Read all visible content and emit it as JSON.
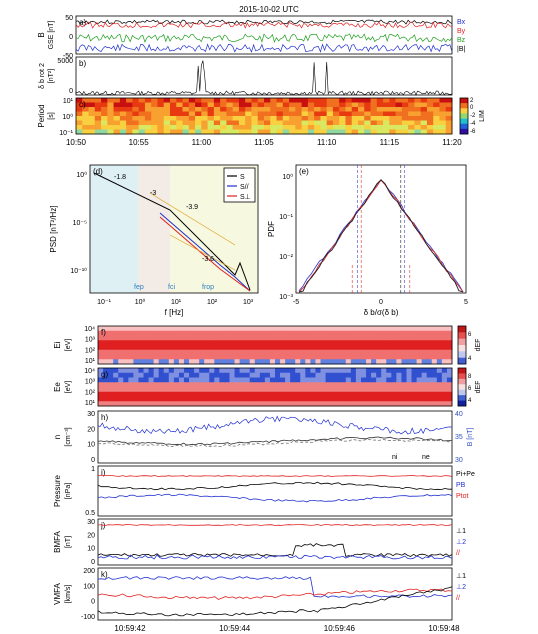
{
  "title": "2015-10-02 UTC",
  "colors": {
    "bx": "#2030d0",
    "by": "#e02020",
    "bz": "#20a020",
    "btot": "#000000",
    "pdf_blue": "#4040d0",
    "pdf_red": "#e03030",
    "pdf_dark": "#202020"
  },
  "top": {
    "a": {
      "letter": "a)",
      "ylabel": "B",
      "ysub": "GSE",
      "yunit": "[nT]",
      "yticks": [
        "50",
        "0",
        "-50"
      ],
      "legend": [
        {
          "label": "B",
          "sub": "x",
          "color": "#2030d0"
        },
        {
          "label": "B",
          "sub": "y",
          "color": "#e02020"
        },
        {
          "label": "B",
          "sub": "z",
          "color": "#20a020"
        },
        {
          "label": "|B|",
          "sub": "",
          "color": "#000000"
        }
      ]
    },
    "b": {
      "letter": "b)",
      "ylabel": "δ b",
      "ysub": "rot",
      "ysup": "2",
      "yunit": "[nT²]",
      "yticks": [
        "5000",
        "0"
      ]
    },
    "c": {
      "letter": "c)",
      "ylabel": "Period",
      "yunit": "[s]",
      "yticks": [
        "10¹",
        "10⁰",
        "10⁻¹"
      ],
      "colorbar": {
        "ticks": [
          "0",
          "-2",
          "-4",
          "-6"
        ],
        "label": "LIM",
        "top": "2"
      }
    },
    "xticks": [
      "10:50",
      "10:55",
      "11:00",
      "11:05",
      "11:10",
      "11:15",
      "11:20"
    ]
  },
  "d": {
    "letter": "(d)",
    "ylabel": "PSD [nT²/Hz]",
    "xlabel": "f [Hz]",
    "yticks": [
      "10⁰",
      "10⁻⁵",
      "10⁻¹⁰"
    ],
    "xticks": [
      "10⁻¹",
      "10⁰",
      "10¹",
      "10²",
      "10³"
    ],
    "slopes": [
      "-1.8",
      "-3",
      "-3.9",
      "-3.6"
    ],
    "freqs": [
      {
        "label": "f",
        "sub": "ep"
      },
      {
        "label": "f",
        "sub": "ci"
      },
      {
        "label": "f",
        "sub": "rop"
      }
    ],
    "legend": [
      {
        "label": "S",
        "sub": "",
        "color": "#000000"
      },
      {
        "label": "S",
        "sub": "//",
        "color": "#2030d0"
      },
      {
        "label": "S",
        "sub": "⊥",
        "color": "#e02020"
      }
    ]
  },
  "e": {
    "letter": "(e)",
    "ylabel": "PDF",
    "xlabel": "δ b/σ(δ b)",
    "yticks": [
      "10⁰",
      "10⁻¹",
      "10⁻²",
      "10⁻³"
    ],
    "xticks": [
      "-5",
      "0",
      "5"
    ]
  },
  "bottom": {
    "f": {
      "letter": "f)",
      "ylabel": "E",
      "ysub": "i",
      "yunit": "[eV]",
      "yticks": [
        "10⁴",
        "10³",
        "10²",
        "10¹"
      ],
      "cbticks": [
        "6",
        "4"
      ],
      "cblabel": "dEF"
    },
    "g": {
      "letter": "g)",
      "ylabel": "E",
      "ysub": "e",
      "yunit": "[eV]",
      "yticks": [
        "10⁴",
        "10³",
        "10²",
        "10¹"
      ],
      "cbticks": [
        "8",
        "6",
        "4"
      ],
      "cblabel": "dEF"
    },
    "h": {
      "letter": "h)",
      "ylabel": "n",
      "yunit": "[cm⁻³]",
      "yticks": [
        "30",
        "20",
        "10",
        "0"
      ],
      "y2ticks": [
        "40",
        "35",
        "30"
      ],
      "y2label": "B [nT]",
      "legend": [
        {
          "label": "n",
          "sub": "i"
        },
        {
          "label": "n",
          "sub": "e"
        }
      ]
    },
    "i": {
      "letter": "i)",
      "ylabel": "Pressure",
      "yunit": "[nPa]",
      "yticks": [
        "1",
        "0.5"
      ],
      "legend": [
        {
          "label": "P",
          "sub": "i",
          "tail": "+P",
          "tailsub": "e",
          "color": "#000000"
        },
        {
          "label": "P",
          "sub": "B",
          "color": "#2030d0"
        },
        {
          "label": "P",
          "sub": "tot",
          "color": "#e02020"
        }
      ]
    },
    "j": {
      "letter": "j)",
      "ylabel": "B",
      "ysub": "MFA",
      "yunit": "[nT]",
      "yticks": [
        "30",
        "20",
        "10",
        "0"
      ],
      "legend": [
        {
          "label": "⊥1",
          "color": "#000000"
        },
        {
          "label": "⊥2",
          "color": "#2030d0"
        },
        {
          "label": "//",
          "color": "#e02020"
        }
      ]
    },
    "k": {
      "letter": "k)",
      "ylabel": "V",
      "ysub": "MFA",
      "yunit": "[km/s]",
      "yticks": [
        "200",
        "100",
        "0",
        "-100"
      ],
      "legend": [
        {
          "label": "⊥1",
          "color": "#000000"
        },
        {
          "label": "⊥2",
          "color": "#2030d0"
        },
        {
          "label": "//",
          "color": "#e02020"
        }
      ]
    },
    "xticks": [
      "10:59:42",
      "10:59:44",
      "10:59:46",
      "10:59:48"
    ]
  },
  "chart_data": [
    {
      "type": "line",
      "ylabel": "B GSE [nT]",
      "ylim": [
        -50,
        50
      ],
      "x_range": [
        "10:50",
        "11:20"
      ],
      "series": [
        {
          "name": "Bx",
          "values": [
            -40,
            -35,
            -38,
            -30,
            -42,
            -36,
            -33
          ]
        },
        {
          "name": "By",
          "values": [
            15,
            20,
            12,
            25,
            18,
            22,
            20
          ]
        },
        {
          "name": "Bz",
          "values": [
            -5,
            0,
            -8,
            -3,
            2,
            -5,
            -2
          ]
        },
        {
          "name": "|B|",
          "values": [
            45,
            44,
            46,
            43,
            45,
            44,
            45
          ]
        }
      ]
    },
    {
      "type": "line",
      "ylabel": "δ b rot² [nT²]",
      "ylim": [
        0,
        5000
      ]
    },
    {
      "type": "heatmap",
      "ylabel": "Period [s]"
    },
    {
      "type": "line",
      "xlabel": "f [Hz]",
      "ylabel": "PSD [nT²/Hz]",
      "series": [
        {
          "name": "S"
        },
        {
          "name": "S//"
        },
        {
          "name": "S⊥"
        }
      ],
      "slopes": [
        -1.8,
        -3,
        -3.9,
        -3.6
      ]
    },
    {
      "type": "line",
      "xlabel": "δ b/σ(δ b)",
      "ylabel": "PDF",
      "xlim": [
        -5,
        5
      ],
      "ylim": [
        0.001,
        1
      ]
    },
    {
      "type": "heatmap",
      "ylabel": "Ei [eV]"
    },
    {
      "type": "heatmap",
      "ylabel": "Ee [eV]"
    },
    {
      "type": "line",
      "ylabel": "n [cm⁻³]",
      "ylim": [
        0,
        30
      ],
      "series": [
        {
          "name": "ni",
          "values": [
            14,
            15,
            16,
            18,
            17,
            15,
            14
          ]
        },
        {
          "name": "ne",
          "values": [
            13,
            14,
            15,
            17,
            16,
            14,
            13
          ]
        }
      ]
    },
    {
      "type": "line",
      "ylabel": "Pressure [nPa]",
      "series": [
        {
          "name": "Pi+Pe",
          "values": [
            1.0,
            1.05,
            0.95,
            0.85,
            1.0,
            1.0,
            1.05
          ]
        },
        {
          "name": "PB",
          "values": [
            0.55,
            0.5,
            0.6,
            0.7,
            0.55,
            0.55,
            0.5
          ]
        },
        {
          "name": "Ptot",
          "values": [
            1.55,
            1.55,
            1.55,
            1.55,
            1.55,
            1.55,
            1.55
          ]
        }
      ]
    },
    {
      "type": "line",
      "ylabel": "B MFA [nT]",
      "series": [
        {
          "name": "⊥1",
          "values": [
            0,
            2,
            3,
            8,
            4,
            2,
            1
          ]
        },
        {
          "name": "⊥2",
          "values": [
            2,
            1,
            3,
            2,
            1,
            3,
            2
          ]
        },
        {
          "name": "//",
          "values": [
            33,
            34,
            35,
            36,
            35,
            34,
            34
          ]
        }
      ]
    },
    {
      "type": "line",
      "ylabel": "V MFA [km/s]",
      "series": [
        {
          "name": "⊥1",
          "values": [
            -80,
            -40,
            -60,
            -100,
            50,
            100,
            150
          ]
        },
        {
          "name": "⊥2",
          "values": [
            200,
            190,
            170,
            220,
            120,
            80,
            80
          ]
        },
        {
          "name": "//",
          "values": [
            30,
            40,
            20,
            10,
            60,
            80,
            70
          ]
        }
      ]
    }
  ]
}
